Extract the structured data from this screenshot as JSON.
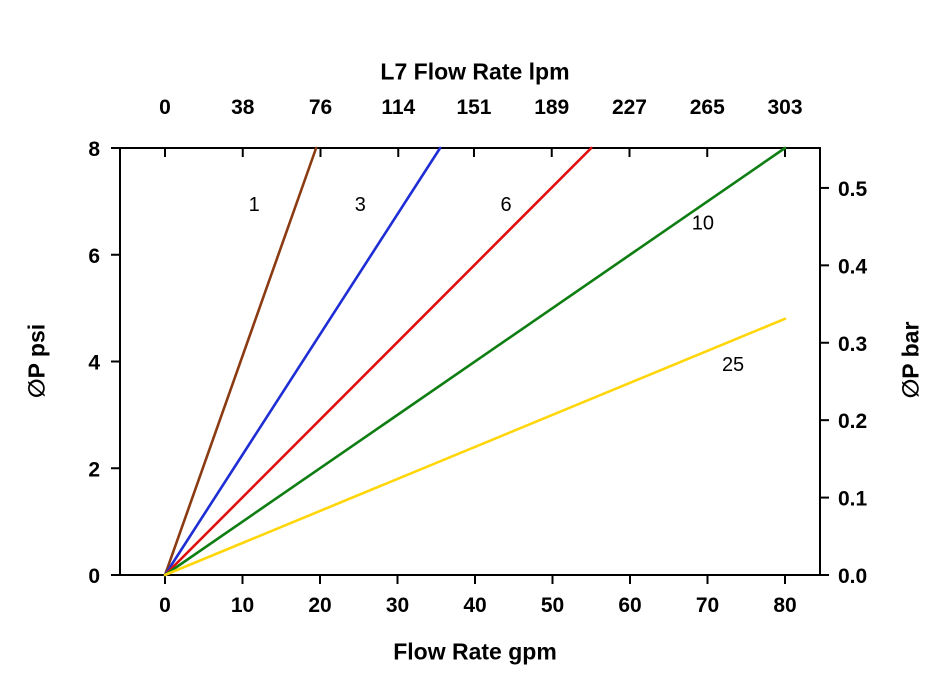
{
  "page": {
    "background": "#ffffff"
  },
  "chart_data": {
    "type": "line",
    "title_top": "L7 Flow Rate lpm",
    "xlabel_bottom": "Flow Rate gpm",
    "ylabel_left": "∅P psi",
    "ylabel_right": "∅P bar",
    "axis_color": "#000000",
    "grid": false,
    "x_axis_gpm": {
      "ticks": [
        0,
        10,
        20,
        30,
        40,
        50,
        60,
        70,
        80
      ],
      "range": [
        0,
        80
      ]
    },
    "x_axis_lpm": {
      "ticks": [
        0,
        38,
        76,
        114,
        151,
        189,
        227,
        265,
        303
      ],
      "range": [
        0,
        303
      ]
    },
    "y_axis_psi": {
      "ticks": [
        0,
        2,
        4,
        6,
        8
      ],
      "range": [
        0,
        8
      ]
    },
    "y_axis_bar": {
      "ticks": [
        "0.0",
        "0.1",
        "0.2",
        "0.3",
        "0.4",
        "0.5"
      ],
      "psi_per_bar": 14.5038
    },
    "series": [
      {
        "name": "1",
        "color": "#8a3b12",
        "points": [
          [
            0,
            0
          ],
          [
            19.5,
            8
          ]
        ],
        "label_at": [
          11.5,
          6.95
        ]
      },
      {
        "name": "3",
        "color": "#1f2ed4",
        "points": [
          [
            0,
            0
          ],
          [
            35.5,
            8
          ]
        ],
        "label_at": [
          25.2,
          6.95
        ]
      },
      {
        "name": "6",
        "color": "#e01010",
        "points": [
          [
            0,
            0
          ],
          [
            55.0,
            8
          ]
        ],
        "label_at": [
          44.0,
          6.95
        ]
      },
      {
        "name": "10",
        "color": "#0e7e12",
        "points": [
          [
            0,
            0
          ],
          [
            80.0,
            8
          ]
        ],
        "label_at": [
          69.4,
          6.6
        ]
      },
      {
        "name": "25",
        "color": "#ffd60a",
        "points": [
          [
            0,
            0
          ],
          [
            80.0,
            4.8
          ]
        ],
        "label_at": [
          73.3,
          3.95
        ]
      }
    ]
  }
}
